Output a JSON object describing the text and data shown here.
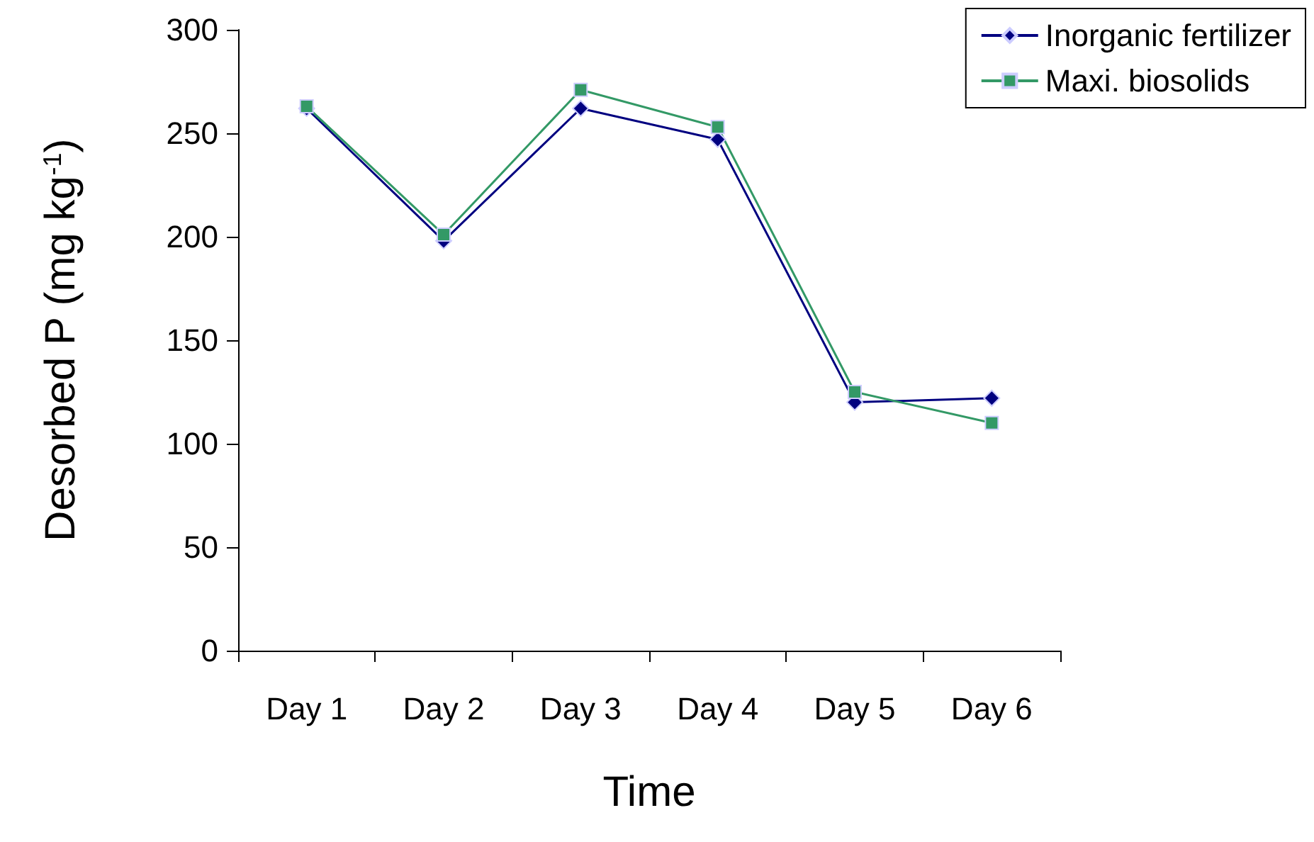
{
  "chart_data": {
    "type": "line",
    "xlabel": "Time",
    "ylabel": "Desorbed P (mg kg$^{-1}$)",
    "categories": [
      "Day 1",
      "Day 2",
      "Day 3",
      "Day 4",
      "Day 5",
      "Day 6"
    ],
    "series": [
      {
        "name": "Inorganic fertilizer",
        "color": "#000080",
        "marker": "diamond",
        "values": [
          262,
          198,
          262,
          247,
          120,
          122
        ]
      },
      {
        "name": "Maxi. biosolids",
        "color": "#339966",
        "marker": "square",
        "values": [
          263,
          201,
          271,
          253,
          125,
          110
        ]
      }
    ],
    "ylim": [
      0,
      300
    ],
    "yticks": [
      0,
      50,
      100,
      150,
      200,
      250,
      300
    ],
    "grid": false,
    "legend": "top right"
  }
}
